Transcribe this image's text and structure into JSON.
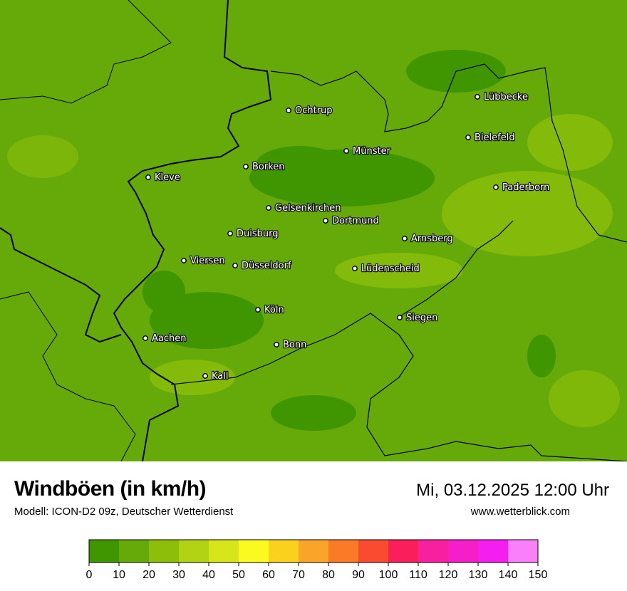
{
  "title": "Windböen (in km/h)",
  "subtitle": "Modell: ICON-D2 09z, Deutscher Wetterdienst",
  "datetime": "Mi, 03.12.2025 12:00 Uhr",
  "website": "www.wetterblick.com",
  "cities": [
    {
      "name": "Lübbecke"
    },
    {
      "name": "Ochtrup"
    },
    {
      "name": "Bielefeld"
    },
    {
      "name": "Münster"
    },
    {
      "name": "Borken"
    },
    {
      "name": "Kleve"
    },
    {
      "name": "Paderborn"
    },
    {
      "name": "Gelsenkirchen"
    },
    {
      "name": "Dortmund"
    },
    {
      "name": "Duisburg"
    },
    {
      "name": "Arnsberg"
    },
    {
      "name": "Viersen"
    },
    {
      "name": "Düsseldorf"
    },
    {
      "name": "Lüdenscheid"
    },
    {
      "name": "Köln"
    },
    {
      "name": "Siegen"
    },
    {
      "name": "Aachen"
    },
    {
      "name": "Bonn"
    },
    {
      "name": "Kall"
    }
  ],
  "legend": {
    "ticks": [
      "0",
      "10",
      "20",
      "30",
      "40",
      "50",
      "60",
      "70",
      "80",
      "90",
      "100",
      "110",
      "120",
      "130",
      "140",
      "150"
    ],
    "colors": [
      "#3f9600",
      "#66aa0a",
      "#8cbe0a",
      "#b2d214",
      "#d6e61a",
      "#fafa20",
      "#fad21e",
      "#faa52a",
      "#fa7a28",
      "#fa4a30",
      "#fa1e5a",
      "#f8209e",
      "#f61ec8",
      "#f41ef0",
      "#fa80fa"
    ]
  }
}
